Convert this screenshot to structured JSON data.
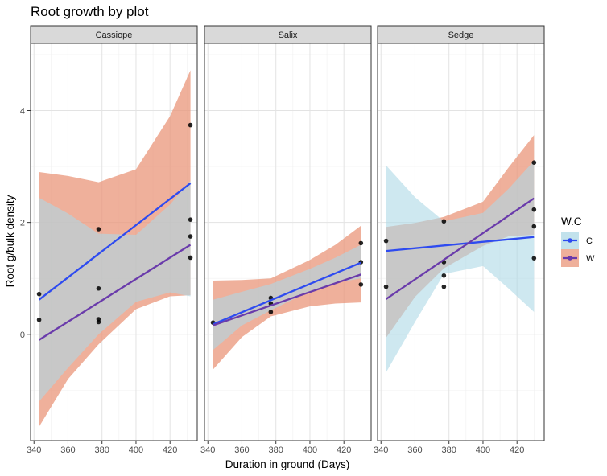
{
  "chart_data": {
    "type": "scatter",
    "title": "Root growth by plot",
    "xlabel": "Duration in ground (Days)",
    "ylabel": "Root g/bulk density",
    "xlim": [
      338,
      436
    ],
    "ylim": [
      -1.9,
      5.2
    ],
    "xticks": [
      340,
      360,
      380,
      400,
      420
    ],
    "yticks": [
      0,
      2,
      4
    ],
    "grid": true,
    "legend": {
      "title": "W.C",
      "position": "right",
      "entries": [
        {
          "label": "C",
          "line_color": "#2e4bf0",
          "ribbon_color": "#add8e6"
        },
        {
          "label": "W",
          "line_color": "#6a3bab",
          "ribbon_color": "#e9967a"
        }
      ]
    },
    "facets": [
      {
        "name": "Cassiope",
        "points": [
          [
            343,
            0.72
          ],
          [
            343,
            0.26
          ],
          [
            378,
            1.88
          ],
          [
            378,
            0.82
          ],
          [
            378,
            0.27
          ],
          [
            378,
            0.22
          ],
          [
            432,
            3.74
          ],
          [
            432,
            2.05
          ],
          [
            432,
            1.75
          ],
          [
            432,
            1.37
          ]
        ],
        "series": [
          {
            "name": "C",
            "x": [
              343,
              432
            ],
            "y": [
              0.62,
              2.7
            ],
            "band_x": [
              343,
              360,
              378,
              400,
              420,
              432
            ],
            "band_lo": [
              -1.2,
              -0.6,
              0.0,
              0.58,
              0.75,
              0.68
            ],
            "band_hi": [
              2.44,
              2.16,
              1.8,
              1.78,
              2.32,
              2.75
            ]
          },
          {
            "name": "W",
            "x": [
              343,
              432
            ],
            "y": [
              -0.1,
              1.6
            ],
            "band_x": [
              343,
              360,
              378,
              400,
              420,
              432
            ],
            "band_lo": [
              -1.65,
              -0.8,
              -0.18,
              0.45,
              0.68,
              0.7
            ],
            "band_hi": [
              2.9,
              2.83,
              2.72,
              2.95,
              3.9,
              4.72
            ]
          }
        ]
      },
      {
        "name": "Salix",
        "points": [
          [
            343,
            0.21
          ],
          [
            377,
            0.65
          ],
          [
            377,
            0.55
          ],
          [
            377,
            0.4
          ],
          [
            430,
            1.63
          ],
          [
            430,
            1.29
          ],
          [
            430,
            0.89
          ]
        ],
        "series": [
          {
            "name": "C",
            "x": [
              343,
              430
            ],
            "y": [
              0.18,
              1.28
            ],
            "band_x": [
              343,
              360,
              377,
              400,
              415,
              430
            ],
            "band_lo": [
              -0.28,
              0.16,
              0.43,
              0.77,
              0.92,
              1.0
            ],
            "band_hi": [
              0.62,
              0.76,
              0.9,
              1.17,
              1.37,
              1.6
            ]
          },
          {
            "name": "W",
            "x": [
              343,
              430
            ],
            "y": [
              0.16,
              1.07
            ],
            "band_x": [
              343,
              360,
              377,
              400,
              415,
              430
            ],
            "band_lo": [
              -0.63,
              -0.05,
              0.32,
              0.5,
              0.55,
              0.57
            ],
            "band_hi": [
              0.96,
              0.97,
              1.0,
              1.33,
              1.6,
              1.94
            ]
          }
        ]
      },
      {
        "name": "Sedge",
        "points": [
          [
            343,
            1.67
          ],
          [
            343,
            0.85
          ],
          [
            377,
            2.02
          ],
          [
            377,
            1.29
          ],
          [
            377,
            1.05
          ],
          [
            377,
            0.85
          ],
          [
            430,
            3.07
          ],
          [
            430,
            2.23
          ],
          [
            430,
            1.93
          ],
          [
            430,
            1.36
          ]
        ],
        "series": [
          {
            "name": "C",
            "x": [
              343,
              430
            ],
            "y": [
              1.49,
              1.74
            ],
            "band_x": [
              343,
              360,
              377,
              400,
              415,
              430
            ],
            "band_lo": [
              -0.68,
              0.22,
              1.08,
              1.22,
              0.82,
              0.4
            ],
            "band_hi": [
              3.02,
              2.45,
              2.02,
              2.17,
              2.6,
              3.1
            ]
          },
          {
            "name": "W",
            "x": [
              343,
              430
            ],
            "y": [
              0.63,
              2.43
            ],
            "band_x": [
              343,
              360,
              377,
              400,
              415,
              430
            ],
            "band_lo": [
              -0.06,
              0.67,
              1.18,
              1.58,
              1.75,
              1.78
            ],
            "band_hi": [
              1.92,
              1.99,
              2.1,
              2.37,
              2.98,
              3.56
            ]
          }
        ]
      }
    ]
  }
}
